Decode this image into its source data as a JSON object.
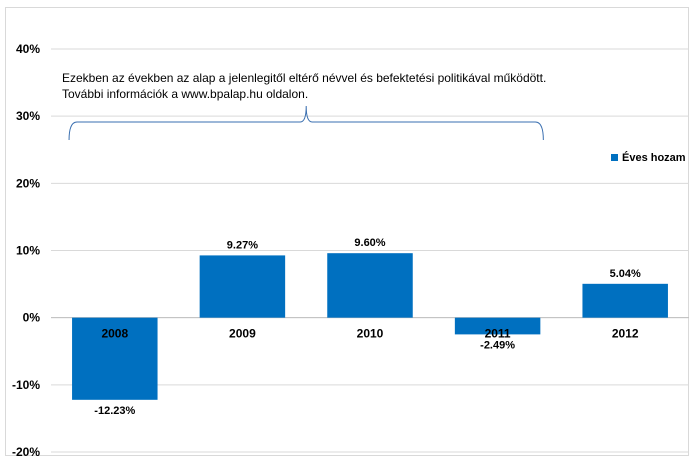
{
  "chart_data": {
    "type": "bar",
    "categories": [
      "2008",
      "2009",
      "2010",
      "2011",
      "2012"
    ],
    "series": [
      {
        "name": "Éves hozam",
        "values": [
          -12.23,
          9.27,
          9.6,
          -2.49,
          5.04
        ],
        "color": "#0070C0"
      }
    ],
    "data_labels": [
      "-12.23%",
      "9.27%",
      "9.60%",
      "-2.49%",
      "5.04%"
    ],
    "y_ticks": [
      "40%",
      "30%",
      "20%",
      "10%",
      "0%",
      "-10%",
      "-20%"
    ],
    "ylim": [
      -20,
      40
    ],
    "grid": true,
    "legend_position": "right",
    "annotation": {
      "line1": "Ezekben az években az alap a jelenlegitől eltérő névvel és befektetési politikával működött.",
      "line2": "További információk a www.bpalap.hu oldalon.",
      "spans_categories": [
        "2008",
        "2011"
      ]
    }
  }
}
